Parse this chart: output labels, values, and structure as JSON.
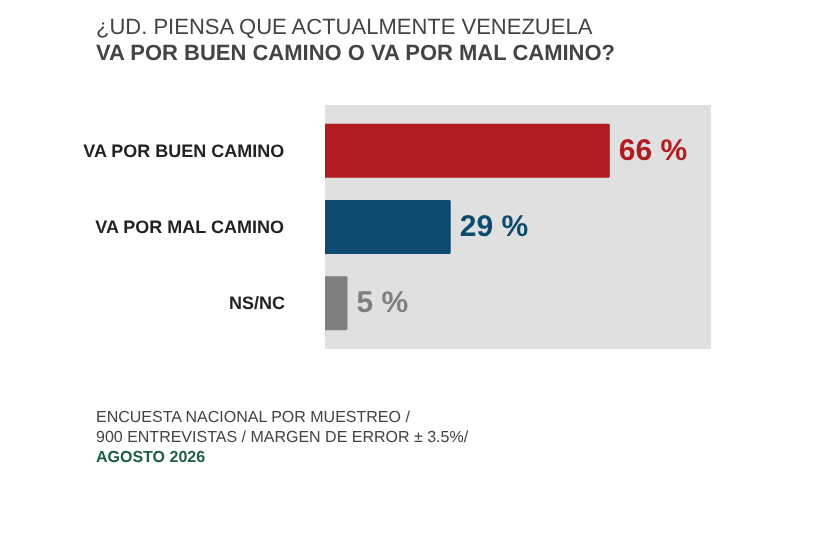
{
  "chart_data": {
    "type": "bar",
    "orientation": "horizontal",
    "title": "¿UD. PIENSA QUE ACTUALMENTE VENEZUELA",
    "subtitle": "VA POR BUEN CAMINO O VA POR MAL CAMINO?",
    "categories": [
      "VA POR BUEN CAMINO",
      "VA POR MAL CAMINO",
      "NS/NC"
    ],
    "values": [
      66,
      29,
      5
    ],
    "colors": [
      "#b01c22",
      "#0d4a6e",
      "#7f7f7f"
    ],
    "value_labels": [
      "66 %",
      "29 %",
      "5 %"
    ],
    "annotations": [
      "ENCUESTA NACIONAL POR MUESTREO /",
      "900 ENTREVISTAS / MARGEN DE ERROR ± 3.5%/",
      "AGOSTO 2026"
    ]
  }
}
